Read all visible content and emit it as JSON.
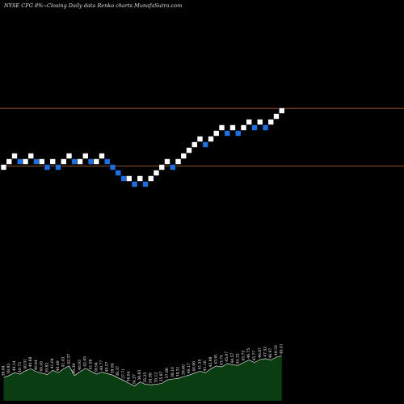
{
  "header": {
    "left": "NYSE CFG 8%~",
    "right": "Closing Daily data Renko charts MunafaSutra.com"
  },
  "colors": {
    "background": "#000000",
    "up_brick": "#ffffff",
    "down_brick": "#1e6fe0",
    "brick_border": "#000000",
    "ref_line": "#b5652d",
    "volume_fill": "#0b3d12",
    "volume_line": "#ffffff"
  },
  "chart_data": {
    "type": "renko",
    "price_levels": 18,
    "bricks": [
      {
        "d": "up",
        "level": 0
      },
      {
        "d": "up",
        "level": 1
      },
      {
        "d": "up",
        "level": 2
      },
      {
        "d": "down",
        "level": 1
      },
      {
        "d": "up",
        "level": 1
      },
      {
        "d": "up",
        "level": 2
      },
      {
        "d": "down",
        "level": 1
      },
      {
        "d": "up",
        "level": 1
      },
      {
        "d": "down",
        "level": 0
      },
      {
        "d": "up",
        "level": 1
      },
      {
        "d": "down",
        "level": 0
      },
      {
        "d": "up",
        "level": 1
      },
      {
        "d": "up",
        "level": 2
      },
      {
        "d": "down",
        "level": 1
      },
      {
        "d": "up",
        "level": 1
      },
      {
        "d": "up",
        "level": 2
      },
      {
        "d": "down",
        "level": 1
      },
      {
        "d": "up",
        "level": 1
      },
      {
        "d": "up",
        "level": 2
      },
      {
        "d": "down",
        "level": 1
      },
      {
        "d": "down",
        "level": 0
      },
      {
        "d": "down",
        "level": -1
      },
      {
        "d": "down",
        "level": -2
      },
      {
        "d": "up",
        "level": -2
      },
      {
        "d": "down",
        "level": -3
      },
      {
        "d": "up",
        "level": -2
      },
      {
        "d": "down",
        "level": -3
      },
      {
        "d": "up",
        "level": -2
      },
      {
        "d": "up",
        "level": -1
      },
      {
        "d": "up",
        "level": 0
      },
      {
        "d": "up",
        "level": 1
      },
      {
        "d": "down",
        "level": 0
      },
      {
        "d": "up",
        "level": 1
      },
      {
        "d": "up",
        "level": 2
      },
      {
        "d": "up",
        "level": 3
      },
      {
        "d": "up",
        "level": 4
      },
      {
        "d": "up",
        "level": 5
      },
      {
        "d": "down",
        "level": 4
      },
      {
        "d": "up",
        "level": 5
      },
      {
        "d": "up",
        "level": 6
      },
      {
        "d": "up",
        "level": 7
      },
      {
        "d": "down",
        "level": 6
      },
      {
        "d": "up",
        "level": 7
      },
      {
        "d": "down",
        "level": 6
      },
      {
        "d": "up",
        "level": 7
      },
      {
        "d": "up",
        "level": 8
      },
      {
        "d": "down",
        "level": 7
      },
      {
        "d": "up",
        "level": 8
      },
      {
        "d": "down",
        "level": 7
      },
      {
        "d": "up",
        "level": 8
      },
      {
        "d": "up",
        "level": 9
      },
      {
        "d": "up",
        "level": 10
      }
    ],
    "reference_lines": [
      {
        "label": "upper",
        "level": 10.4
      },
      {
        "label": "lower",
        "level": 0.2
      }
    ],
    "volume_labels": [
      "39.64",
      "38.83",
      "40.14",
      "40.73",
      "40.51",
      "40.68",
      "40.44",
      "40.45",
      "39.82",
      "41.04",
      "40.49",
      "41.43",
      "42.37",
      "39.38",
      "40.93",
      "42.05",
      "41.08",
      "39.94",
      "40.77",
      "40.27",
      "39.84",
      "38.37",
      "37.71",
      "36.04",
      "34.27",
      "36.83",
      "35.25",
      "34.99",
      "35.12",
      "35.87",
      "37.86",
      "38.10",
      "38.31",
      "39.60",
      "40.17",
      "40.90",
      "41.55",
      "41.16",
      "42.69",
      "43.91",
      "43.74",
      "45.07",
      "44.57",
      "44.32",
      "45.73",
      "46.75",
      "45.77",
      "46.87",
      "47.52",
      "46.97",
      "48.33",
      "49.01"
    ],
    "volume_levels": [
      0.48,
      0.52,
      0.58,
      0.55,
      0.62,
      0.66,
      0.6,
      0.57,
      0.54,
      0.63,
      0.58,
      0.66,
      0.72,
      0.52,
      0.6,
      0.67,
      0.61,
      0.55,
      0.59,
      0.56,
      0.53,
      0.47,
      0.42,
      0.36,
      0.3,
      0.39,
      0.34,
      0.33,
      0.34,
      0.36,
      0.43,
      0.45,
      0.46,
      0.5,
      0.53,
      0.57,
      0.61,
      0.58,
      0.66,
      0.72,
      0.7,
      0.77,
      0.74,
      0.73,
      0.79,
      0.84,
      0.79,
      0.85,
      0.87,
      0.84,
      0.9,
      0.93
    ]
  }
}
